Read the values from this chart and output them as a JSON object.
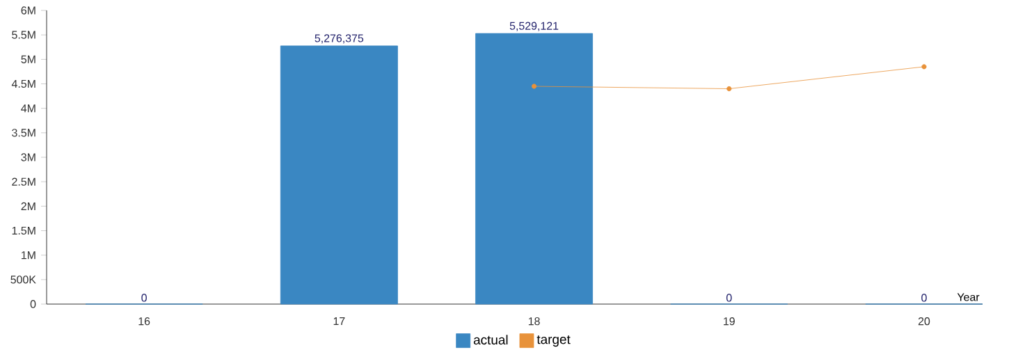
{
  "chart_data": {
    "type": "bar",
    "categories": [
      "16",
      "17",
      "18",
      "19",
      "20"
    ],
    "xlabel": "Year",
    "ylim": [
      0,
      6000000
    ],
    "yticks": [
      0,
      {
        "value": 500000,
        "label": "500K"
      },
      {
        "value": 1000000,
        "label": "1M"
      },
      {
        "value": 1500000,
        "label": "1.5M"
      },
      {
        "value": 2000000,
        "label": "2M"
      },
      {
        "value": 2500000,
        "label": "2.5M"
      },
      {
        "value": 3000000,
        "label": "3M"
      },
      {
        "value": 3500000,
        "label": "3.5M"
      },
      {
        "value": 4000000,
        "label": "4M"
      },
      {
        "value": 4500000,
        "label": "4.5M"
      },
      {
        "value": 5000000,
        "label": "5M"
      },
      {
        "value": 5500000,
        "label": "5.5M"
      },
      {
        "value": 6000000,
        "label": "6M"
      }
    ],
    "series": [
      {
        "name": "actual",
        "color": "#3a87c2",
        "values": [
          0,
          5276375,
          5529121,
          0,
          0
        ],
        "value_labels": [
          "0",
          "5,276,375",
          "5,529,121",
          "0",
          "0"
        ]
      },
      {
        "name": "target",
        "type": "line",
        "color": "#e8923a",
        "values": [
          null,
          null,
          4450000,
          4400000,
          4850000
        ]
      }
    ],
    "marker": "circle",
    "legend": "bottom"
  }
}
